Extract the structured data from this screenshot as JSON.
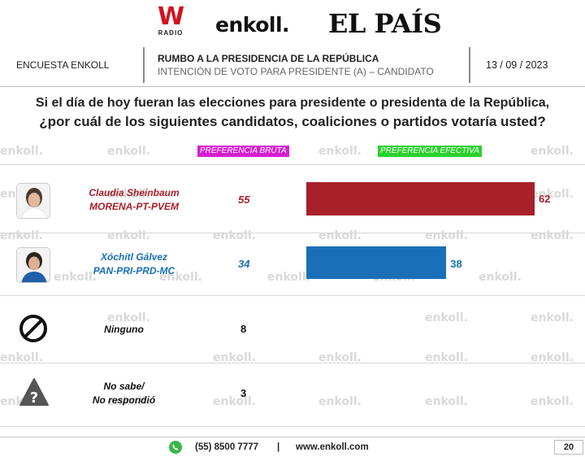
{
  "logos": {
    "w": "W",
    "radio": "RADIO",
    "enkoll": "enkoll.",
    "pais": "EL PAÍS"
  },
  "header": {
    "left": "ENCUESTA ENKOLL",
    "title": "RUMBO A LA PRESIDENCIA DE LA REPÚBLICA",
    "subtitle": "INTENCIÓN DE VOTO PARA PRESIDENTE (A) – CANDIDATO",
    "date": "13 / 09 / 2023"
  },
  "question": {
    "line1": "Si el día de hoy fueran las elecciones para presidente o presidenta de la República,",
    "line2": "¿por cuál de los siguientes candidatos, coaliciones o partidos votaría usted?"
  },
  "watermark": "enkoll.",
  "colors": {
    "sheinbaum": "#a8202a",
    "galvez": "#1a6fb8",
    "bruta_badge": "#d61ecf",
    "efectiva_badge": "#2bd12b"
  },
  "chart_data": {
    "type": "bar",
    "series": [
      {
        "name": "PREFERENCIA BRUTA",
        "values": [
          55,
          34,
          8,
          3
        ]
      },
      {
        "name": "PREFERENCIA EFECTIVA",
        "values": [
          62,
          38
        ]
      }
    ],
    "rows": [
      {
        "name_line1": "Claudia Sheinbaum",
        "name_line2": "MORENA-PT-PVEM",
        "bruta": 55,
        "efectiva": 62,
        "color": "#a8202a",
        "icon": "candidate-photo"
      },
      {
        "name_line1": "Xóchitl Gálvez",
        "name_line2": "PAN-PRI-PRD-MC",
        "bruta": 34,
        "efectiva": 38,
        "color": "#1a6fb8",
        "icon": "candidate-photo"
      },
      {
        "name_line1": "Ninguno",
        "name_line2": "",
        "bruta": 8,
        "icon": "prohibited-icon"
      },
      {
        "name_line1": "No sabe/",
        "name_line2": "No respondió",
        "bruta": 3,
        "icon": "question-icon"
      }
    ]
  },
  "footer": {
    "phone": "(55) 8500 7777",
    "separator": "|",
    "url": "www.enkoll.com",
    "page": "20",
    "icon": "whatsapp-icon"
  }
}
